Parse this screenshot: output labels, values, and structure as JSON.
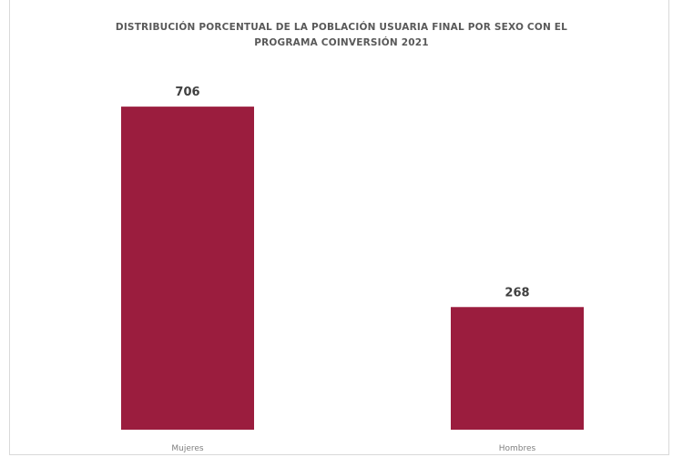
{
  "chart_data": {
    "type": "bar",
    "title_line1": "DISTRIBUCIÓN PORCENTUAL DE LA POBLACIÓN USUARIA FINAL POR SEXO CON EL",
    "title_line2": "PROGRAMA COINVERSIÓN 2021",
    "categories": [
      "Mujeres",
      "Hombres"
    ],
    "values": [
      706,
      268
    ],
    "data_labels": [
      "706",
      "268"
    ],
    "ylim": [
      0,
      750
    ],
    "grid": false,
    "legend": "none",
    "bar_color": "#9b1d3e"
  }
}
